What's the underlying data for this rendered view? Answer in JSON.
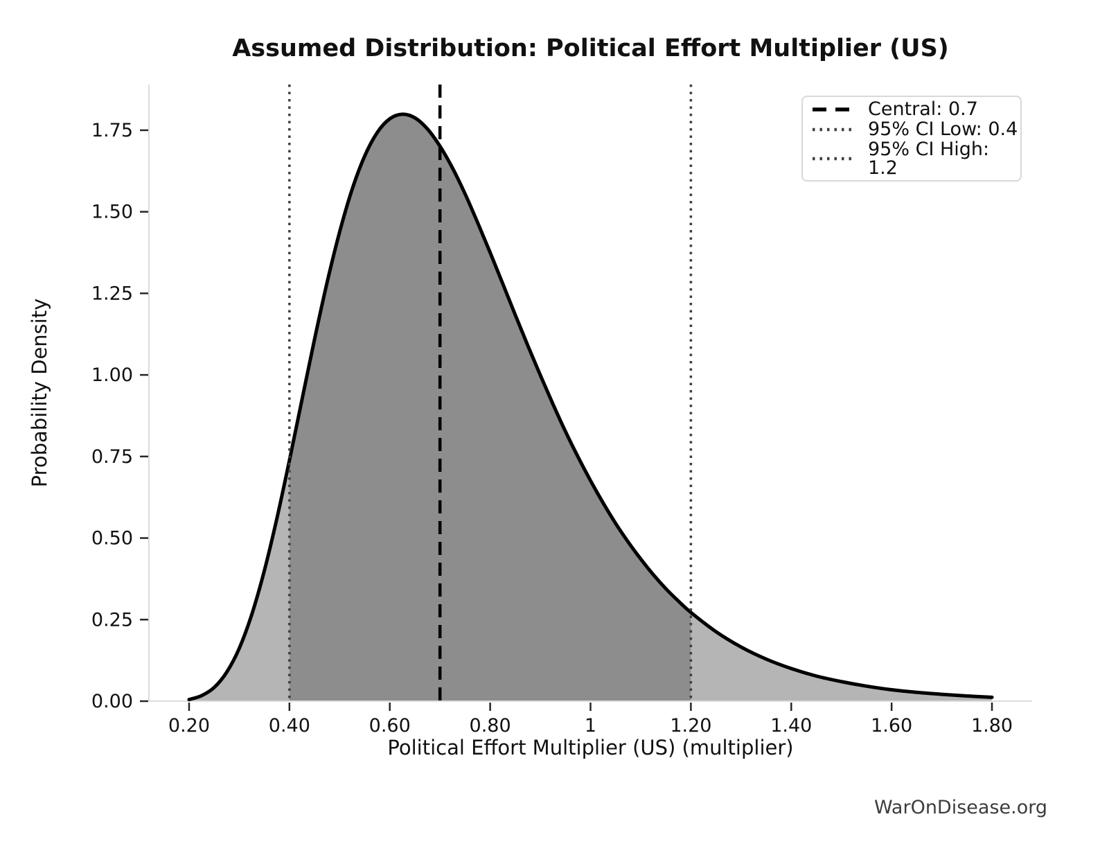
{
  "branding": {
    "watermark": "WarOnDisease.org"
  },
  "chart_data": {
    "type": "area",
    "title": "Assumed Distribution: Political Effort Multiplier (US)",
    "xlabel": "Political Effort Multiplier (US) (multiplier)",
    "ylabel": "Probability Density",
    "distribution": "lognormal-like density",
    "central": 0.7,
    "ci_low": 0.4,
    "ci_high": 1.2,
    "xlim": [
      0.12,
      1.88
    ],
    "ylim": [
      0,
      1.89
    ],
    "grid": false,
    "legend_position": "upper right",
    "x_ticks": {
      "values": [
        0.2,
        0.4,
        0.6,
        0.8,
        1.0,
        1.2,
        1.4,
        1.6,
        1.8
      ],
      "labels": [
        "0.20",
        "0.40",
        "0.60",
        "0.80",
        "1",
        "1.20",
        "1.40",
        "1.60",
        "1.80"
      ]
    },
    "y_ticks": {
      "values": [
        0,
        0.25,
        0.5,
        0.75,
        1.0,
        1.25,
        1.5,
        1.75
      ],
      "labels": [
        "0.00",
        "0.25",
        "0.50",
        "0.75",
        "1.00",
        "1.25",
        "1.50",
        "1.75"
      ]
    },
    "curve": {
      "x": [
        0.2,
        0.225,
        0.25,
        0.275,
        0.3,
        0.325,
        0.35,
        0.375,
        0.4,
        0.425,
        0.45,
        0.475,
        0.5,
        0.525,
        0.55,
        0.575,
        0.6,
        0.625,
        0.65,
        0.675,
        0.7,
        0.725,
        0.75,
        0.775,
        0.8,
        0.825,
        0.85,
        0.875,
        0.9,
        0.925,
        0.95,
        0.975,
        1.0,
        1.025,
        1.05,
        1.075,
        1.1,
        1.125,
        1.15,
        1.175,
        1.2,
        1.25,
        1.3,
        1.35,
        1.4,
        1.45,
        1.5,
        1.55,
        1.6,
        1.65,
        1.7,
        1.75,
        1.8
      ],
      "density": [
        0.005,
        0.017,
        0.042,
        0.089,
        0.162,
        0.266,
        0.4,
        0.56,
        0.738,
        0.924,
        1.109,
        1.283,
        1.438,
        1.569,
        1.671,
        1.743,
        1.785,
        1.799,
        1.788,
        1.754,
        1.701,
        1.634,
        1.555,
        1.467,
        1.375,
        1.28,
        1.184,
        1.09,
        0.999,
        0.911,
        0.827,
        0.749,
        0.676,
        0.608,
        0.545,
        0.488,
        0.436,
        0.388,
        0.345,
        0.307,
        0.272,
        0.213,
        0.166,
        0.129,
        0.1,
        0.077,
        0.06,
        0.046,
        0.035,
        0.027,
        0.021,
        0.016,
        0.012
      ]
    },
    "peak": {
      "x": 0.625,
      "density": 1.8
    },
    "legend": [
      {
        "label": "Central: 0.7",
        "style": "dashed",
        "color": "#000000"
      },
      {
        "label": "95% CI Low: 0.4",
        "style": "dotted",
        "color": "#3f3f3f"
      },
      {
        "label": "95% CI High: 1.2",
        "style": "dotted",
        "color": "#3f3f3f"
      }
    ],
    "colors": {
      "curve": "#000000",
      "fill_light": "#b5b5b5",
      "fill_dark": "#8d8d8d",
      "central_line": "#000000",
      "ci_line": "#3f3f3f",
      "spine": "#dcdcdc",
      "tick": "#262626",
      "tick_label": "#111111"
    }
  }
}
